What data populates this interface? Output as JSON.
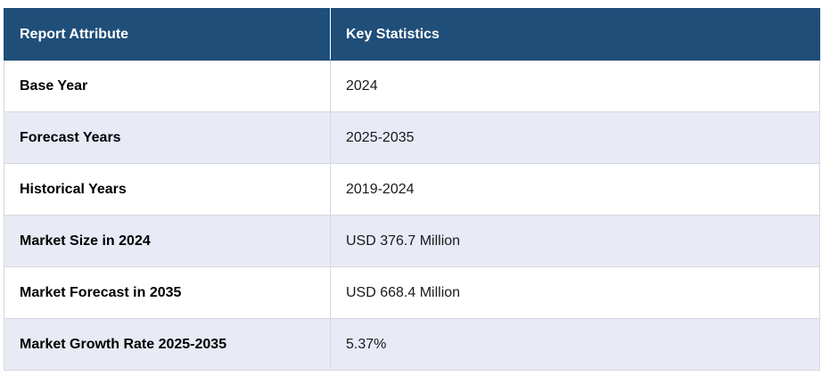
{
  "header": {
    "col1": "Report Attribute",
    "col2": "Key Statistics"
  },
  "rows": [
    {
      "attribute": "Base Year",
      "value": "2024"
    },
    {
      "attribute": "Forecast Years",
      "value": "2025-2035"
    },
    {
      "attribute": "Historical Years",
      "value": "2019-2024"
    },
    {
      "attribute": "Market Size in 2024",
      "value": "USD 376.7 Million"
    },
    {
      "attribute": "Market Forecast in 2035",
      "value": "USD 668.4 Million"
    },
    {
      "attribute": "Market Growth Rate 2025-2035",
      "value": "5.37%"
    }
  ],
  "colors": {
    "header_bg": "#1f4e79",
    "alt_row_bg": "#e8eaf6"
  }
}
